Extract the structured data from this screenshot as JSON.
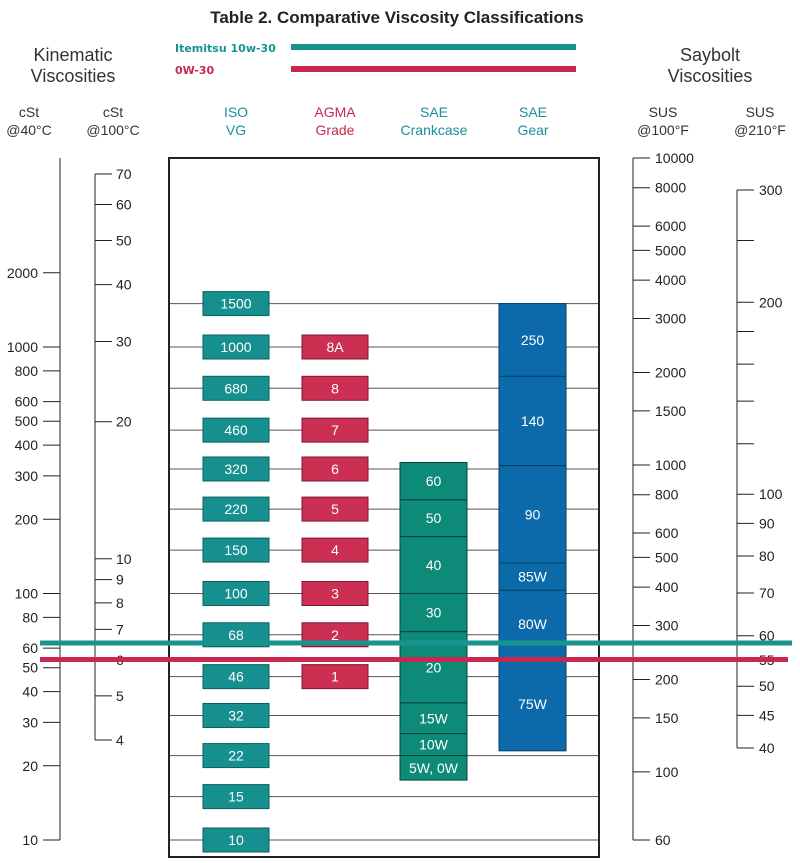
{
  "title": "Table 2. Comparative Viscosity Classifications",
  "groups": {
    "left": [
      "Kinematic",
      "Viscosities"
    ],
    "right": [
      "Saybolt",
      "Viscosities"
    ]
  },
  "legend": [
    {
      "label": "Itemitsu  10w-30",
      "color": "#16958f"
    },
    {
      "label": "0W-30",
      "color": "#c8284f"
    }
  ],
  "colors": {
    "teal_box": "#16908f",
    "red_box": "#cb2f52",
    "green_box": "#0d8a78",
    "blue_box": "#0c6aaa",
    "text_teal": "#1a8f9b",
    "text_red": "#c8284f"
  },
  "scales": [
    {
      "header": [
        "cSt",
        "@40°C"
      ],
      "ticks": [
        {
          "v": 2000,
          "label": "2000"
        },
        {
          "v": 1000,
          "label": "1000"
        },
        {
          "v": 800,
          "label": "800"
        },
        {
          "v": 600,
          "label": "600"
        },
        {
          "v": 500,
          "label": "500"
        },
        {
          "v": 400,
          "label": "400"
        },
        {
          "v": 300,
          "label": "300"
        },
        {
          "v": 200,
          "label": "200"
        },
        {
          "v": 100,
          "label": "100"
        },
        {
          "v": 80,
          "label": "80"
        },
        {
          "v": 60,
          "label": "60"
        },
        {
          "v": 50,
          "label": "50"
        },
        {
          "v": 40,
          "label": "40"
        },
        {
          "v": 30,
          "label": "30"
        },
        {
          "v": 20,
          "label": "20"
        },
        {
          "v": 10,
          "label": "10"
        }
      ]
    },
    {
      "header": [
        "cSt",
        "@100°C"
      ],
      "ticks": [
        {
          "v": 70,
          "label": "70"
        },
        {
          "v": 60,
          "label": "60"
        },
        {
          "v": 50,
          "label": "50"
        },
        {
          "v": 40,
          "label": "40"
        },
        {
          "v": 30,
          "label": "30"
        },
        {
          "v": 20,
          "label": "20"
        },
        {
          "v": 10,
          "label": "10"
        },
        {
          "v": 9,
          "label": "9"
        },
        {
          "v": 8,
          "label": "8"
        },
        {
          "v": 7,
          "label": "7"
        },
        {
          "v": 6,
          "label": "6"
        },
        {
          "v": 5,
          "label": "5"
        },
        {
          "v": 4,
          "label": "4"
        }
      ]
    },
    {
      "header": [
        "SUS",
        "@100°F"
      ],
      "ticks": [
        {
          "v": 10000,
          "label": "10000"
        },
        {
          "v": 8000,
          "label": "8000"
        },
        {
          "v": 6000,
          "label": "6000"
        },
        {
          "v": 5000,
          "label": "5000"
        },
        {
          "v": 4000,
          "label": "4000"
        },
        {
          "v": 3000,
          "label": "3000"
        },
        {
          "v": 2000,
          "label": "2000"
        },
        {
          "v": 1500,
          "label": "1500"
        },
        {
          "v": 1000,
          "label": "1000"
        },
        {
          "v": 800,
          "label": "800"
        },
        {
          "v": 600,
          "label": "600"
        },
        {
          "v": 500,
          "label": "500"
        },
        {
          "v": 400,
          "label": "400"
        },
        {
          "v": 300,
          "label": "300"
        },
        {
          "v": 200,
          "label": "200"
        },
        {
          "v": 150,
          "label": "150"
        },
        {
          "v": 100,
          "label": "100"
        },
        {
          "v": 60,
          "label": "60"
        }
      ]
    },
    {
      "header": [
        "SUS",
        "@210°F"
      ],
      "ticks": [
        {
          "v": 300,
          "label": "300"
        },
        {
          "v": 250,
          "label": ""
        },
        {
          "v": 200,
          "label": "200"
        },
        {
          "v": 180,
          "label": ""
        },
        {
          "v": 160,
          "label": ""
        },
        {
          "v": 140,
          "label": ""
        },
        {
          "v": 120,
          "label": ""
        },
        {
          "v": 100,
          "label": "100"
        },
        {
          "v": 90,
          "label": "90"
        },
        {
          "v": 80,
          "label": "80"
        },
        {
          "v": 70,
          "label": "70"
        },
        {
          "v": 60,
          "label": "60"
        },
        {
          "v": 55,
          "label": "55"
        },
        {
          "v": 50,
          "label": "50"
        },
        {
          "v": 45,
          "label": "45"
        },
        {
          "v": 40,
          "label": "40"
        }
      ]
    }
  ],
  "columns": [
    {
      "header": [
        "ISO",
        "VG"
      ],
      "items": [
        "1500",
        "1000",
        "680",
        "460",
        "320",
        "220",
        "150",
        "100",
        "68",
        "46",
        "32",
        "22",
        "15",
        "10"
      ]
    },
    {
      "header": [
        "AGMA",
        "Grade"
      ],
      "items": [
        "8A",
        "8",
        "7",
        "6",
        "5",
        "4",
        "3",
        "2",
        "1"
      ]
    },
    {
      "header": [
        "SAE",
        "Crankcase"
      ],
      "items": [
        "60",
        "50",
        "40",
        "30",
        "20",
        "15W",
        "10W",
        "5W, 0W"
      ]
    },
    {
      "header": [
        "SAE",
        "Gear"
      ],
      "items": [
        "250",
        "140",
        "90",
        "85W",
        "80W",
        "75W"
      ]
    }
  ],
  "chart_data": {
    "type": "table",
    "title": "Table 2. Comparative Viscosity Classifications",
    "y_scale": "log",
    "y_unit": "cSt @40°C",
    "ylim": [
      10,
      2000
    ],
    "iso_vg": [
      {
        "label": "1500",
        "cst40": 1500
      },
      {
        "label": "1000",
        "cst40": 1000
      },
      {
        "label": "680",
        "cst40": 680
      },
      {
        "label": "460",
        "cst40": 460
      },
      {
        "label": "320",
        "cst40": 320
      },
      {
        "label": "220",
        "cst40": 220
      },
      {
        "label": "150",
        "cst40": 150
      },
      {
        "label": "100",
        "cst40": 100
      },
      {
        "label": "68",
        "cst40": 68
      },
      {
        "label": "46",
        "cst40": 46
      },
      {
        "label": "32",
        "cst40": 32
      },
      {
        "label": "22",
        "cst40": 22
      },
      {
        "label": "15",
        "cst40": 15
      },
      {
        "label": "10",
        "cst40": 10
      }
    ],
    "agma_grade": [
      {
        "label": "8A",
        "cst40": 1000
      },
      {
        "label": "8",
        "cst40": 680
      },
      {
        "label": "7",
        "cst40": 460
      },
      {
        "label": "6",
        "cst40": 320
      },
      {
        "label": "5",
        "cst40": 220
      },
      {
        "label": "4",
        "cst40": 150
      },
      {
        "label": "3",
        "cst40": 100
      },
      {
        "label": "2",
        "cst40": 68
      },
      {
        "label": "1",
        "cst40": 46
      }
    ],
    "sae_crankcase": [
      {
        "label": "60",
        "range": [
          240,
          340
        ]
      },
      {
        "label": "50",
        "range": [
          170,
          240
        ]
      },
      {
        "label": "40",
        "range": [
          100,
          170
        ]
      },
      {
        "label": "30",
        "range": [
          70,
          100
        ]
      },
      {
        "label": "20",
        "range": [
          36,
          70
        ]
      },
      {
        "label": "15W",
        "range": [
          27,
          36
        ]
      },
      {
        "label": "10W",
        "range": [
          22,
          27
        ]
      },
      {
        "label": "5W, 0W",
        "range": [
          17.5,
          22
        ]
      }
    ],
    "sae_gear": [
      {
        "label": "250",
        "range": [
          760,
          1500
        ]
      },
      {
        "label": "140",
        "range": [
          330,
          760
        ]
      },
      {
        "label": "90",
        "range": [
          133,
          330
        ]
      },
      {
        "label": "85W",
        "range": [
          103,
          133
        ]
      },
      {
        "label": "80W",
        "range": [
          55,
          103
        ]
      },
      {
        "label": "75W",
        "range": [
          23,
          55
        ]
      }
    ],
    "markers": [
      {
        "series": "Itemitsu  10w-30",
        "cst40": 63
      },
      {
        "series": "0W-30",
        "cst40": 54
      }
    ]
  }
}
